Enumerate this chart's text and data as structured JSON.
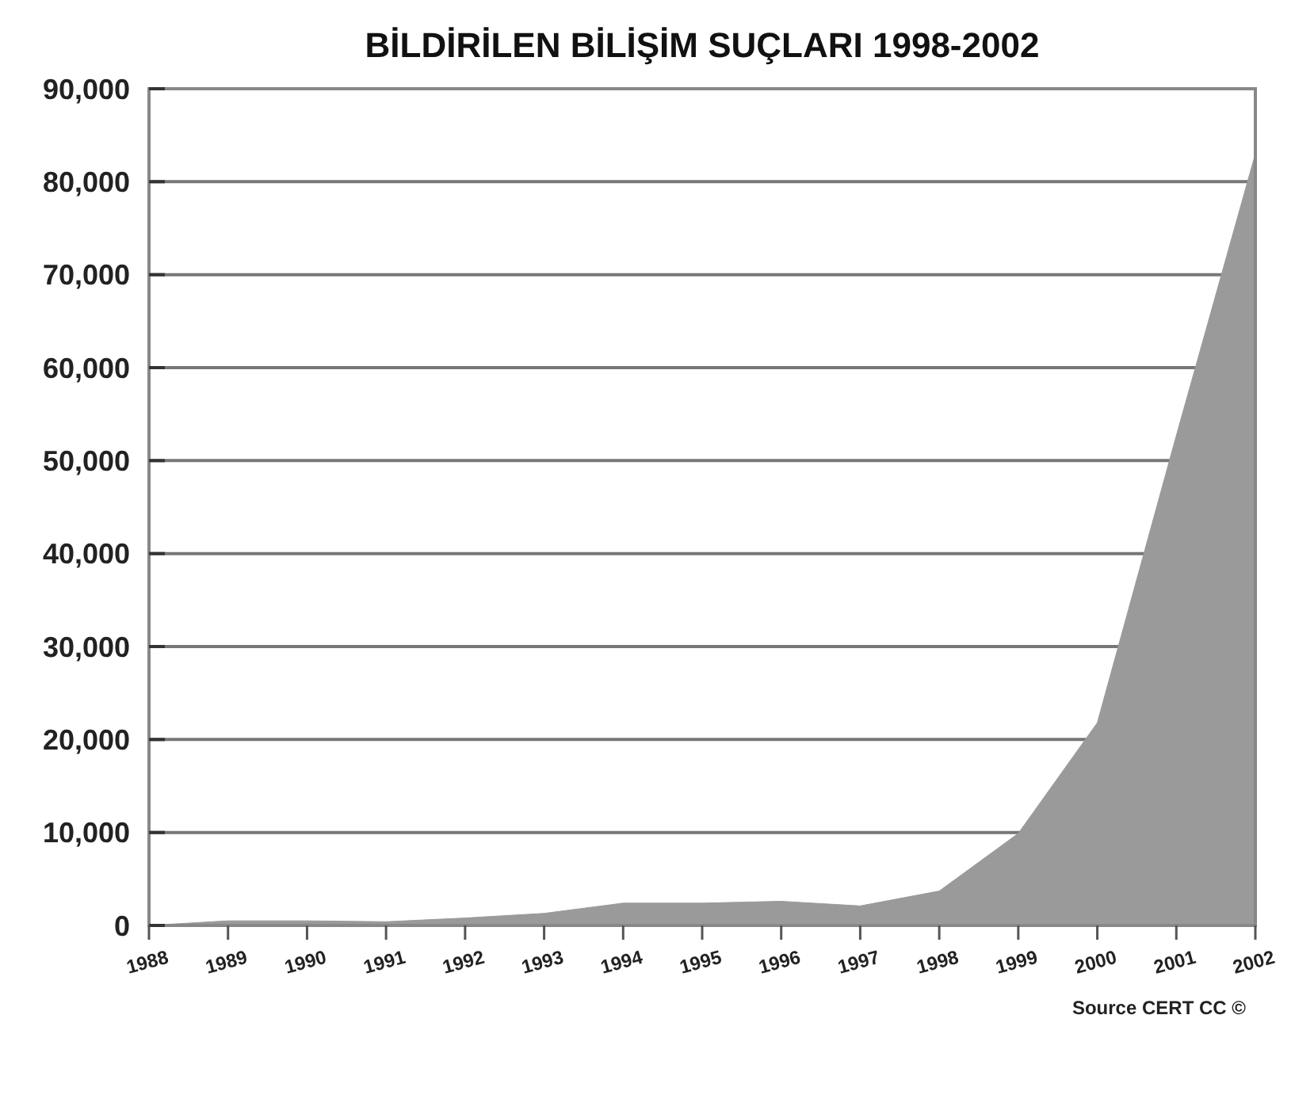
{
  "chart_data": {
    "type": "area",
    "title": "BİLDİRİLEN BİLİŞİM SUÇLARI 1998-2002",
    "x": [
      1988,
      1989,
      1990,
      1991,
      1992,
      1993,
      1994,
      1995,
      1996,
      1997,
      1998,
      1999,
      2000,
      2001,
      2002
    ],
    "series": [
      {
        "color": "#9a9a9a",
        "values": [
          0,
          500,
          500,
          400,
          800,
          1300,
          2400,
          2400,
          2600,
          2100,
          3700,
          9900,
          21800,
          52700,
          83000
        ]
      }
    ],
    "xlim": [
      1988,
      2002
    ],
    "xticks": [
      1988,
      1989,
      1990,
      1991,
      1992,
      1993,
      1994,
      1995,
      1996,
      1997,
      1998,
      1999,
      2000,
      2001,
      2002
    ],
    "ylim": [
      0,
      90000
    ],
    "yticks": [
      {
        "value": 0,
        "label": "0"
      },
      {
        "value": 10000,
        "label": "10,000"
      },
      {
        "value": 20000,
        "label": "20,000"
      },
      {
        "value": 30000,
        "label": "30,000"
      },
      {
        "value": 40000,
        "label": "40,000"
      },
      {
        "value": 50000,
        "label": "50,000"
      },
      {
        "value": 60000,
        "label": "60,000"
      },
      {
        "value": 70000,
        "label": "70,000"
      },
      {
        "value": 80000,
        "label": "80,000"
      },
      {
        "value": 90000,
        "label": "90,000"
      }
    ],
    "grid": "y",
    "annotations": [
      "Source CERT CC ©"
    ]
  }
}
